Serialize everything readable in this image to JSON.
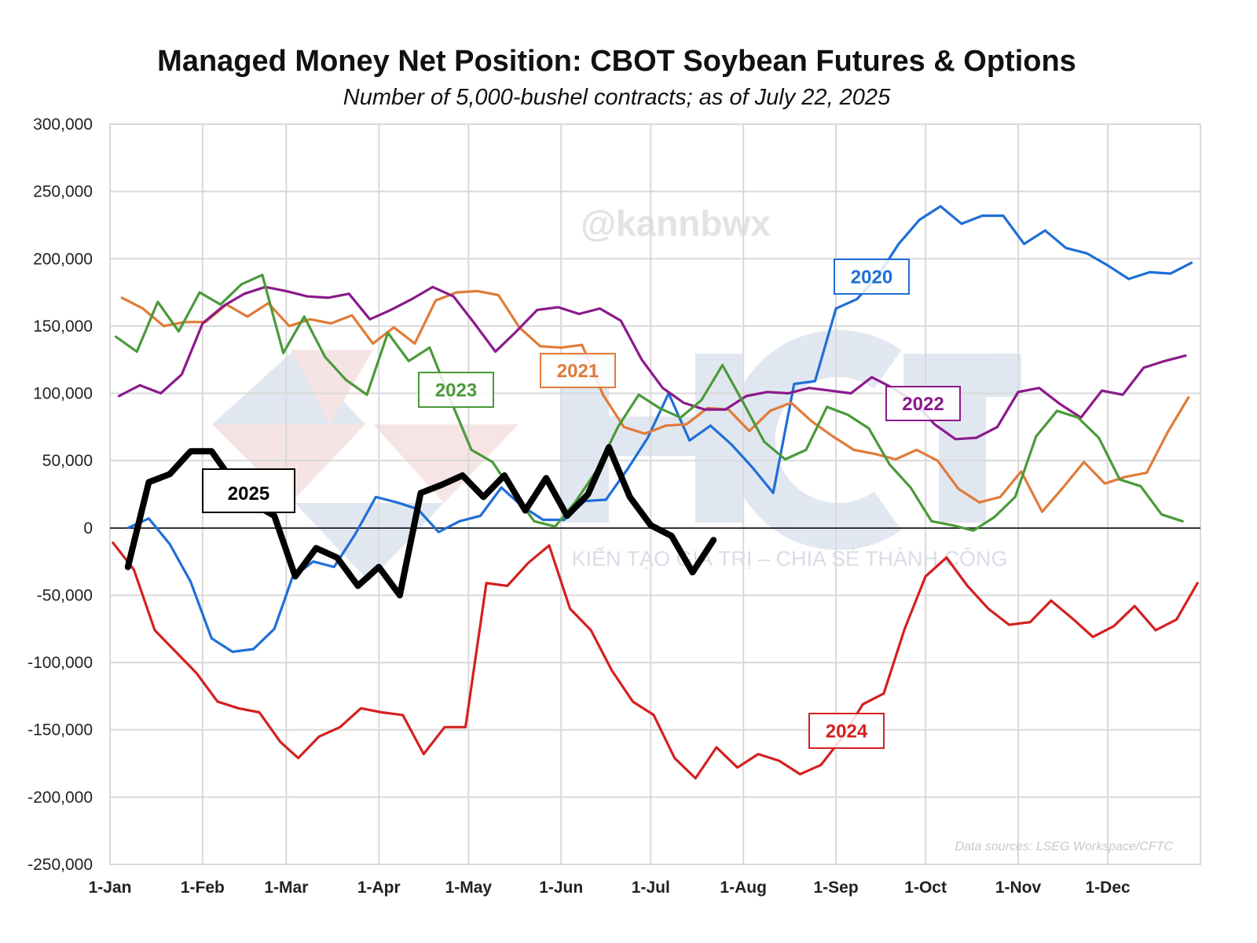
{
  "chart_data": {
    "type": "line",
    "title": "Managed Money Net Position: CBOT Soybean Futures & Options",
    "subtitle": "Number of 5,000-bushel contracts; as of July 22, 2025",
    "xlabel": "",
    "ylabel": "",
    "ylim": [
      -250000,
      300000
    ],
    "y_ticks": [
      "300,000",
      "250,000",
      "200,000",
      "150,000",
      "100,000",
      "50,000",
      "0",
      "-50,000",
      "-100,000",
      "-150,000",
      "-200,000",
      "-250,000"
    ],
    "x_ticks": [
      "1-Jan",
      "1-Feb",
      "1-Mar",
      "1-Apr",
      "1-May",
      "1-Jun",
      "1-Jul",
      "1-Aug",
      "1-Sep",
      "1-Oct",
      "1-Nov",
      "1-Dec"
    ],
    "grid": true,
    "legend": "inline labels",
    "source": "Data sources: LSEG Workspace/CFTC",
    "watermarks": [
      "@kannbwx",
      "HCT",
      "KIẾN TẠO GIÁ TRỊ – CHIA SẺ THÀNH CÔNG"
    ],
    "series": [
      {
        "name": "2020",
        "color": "#1f6fd6",
        "x": [
          "01-07",
          "01-14",
          "01-21",
          "01-28",
          "02-04",
          "02-11",
          "02-18",
          "02-25",
          "03-03",
          "03-10",
          "03-17",
          "03-24",
          "03-31",
          "04-07",
          "04-14",
          "04-21",
          "04-28",
          "05-05",
          "05-12",
          "05-19",
          "05-26",
          "06-02",
          "06-09",
          "06-16",
          "06-23",
          "06-30",
          "07-07",
          "07-14",
          "07-21",
          "07-28",
          "08-04",
          "08-11",
          "08-18",
          "08-25",
          "09-01",
          "09-08",
          "09-15",
          "09-22",
          "09-29",
          "10-06",
          "10-13",
          "10-20",
          "10-27",
          "11-03",
          "11-10",
          "11-17",
          "11-24",
          "12-01",
          "12-08",
          "12-15",
          "12-22",
          "12-29"
        ],
        "y": [
          0,
          7000,
          -12000,
          -40000,
          -82000,
          -92000,
          -90000,
          -75000,
          -37000,
          -25000,
          -29000,
          -5000,
          23000,
          19000,
          14000,
          -3000,
          5000,
          9000,
          30000,
          16000,
          6000,
          6000,
          20000,
          21000,
          43000,
          67000,
          100000,
          65000,
          76000,
          62000,
          45000,
          26000,
          107000,
          109000,
          163000,
          170000,
          187000,
          211000,
          229000,
          239000,
          226000,
          232000,
          232000,
          211000,
          221000,
          208000,
          204000,
          195000,
          185000,
          190000,
          189000,
          197000
        ]
      },
      {
        "name": "2021",
        "color": "#e07b39",
        "x": [
          "01-05",
          "01-12",
          "01-19",
          "01-26",
          "02-02",
          "02-09",
          "02-16",
          "02-23",
          "03-02",
          "03-09",
          "03-16",
          "03-23",
          "03-30",
          "04-06",
          "04-13",
          "04-20",
          "04-27",
          "05-04",
          "05-11",
          "05-18",
          "05-25",
          "06-01",
          "06-08",
          "06-15",
          "06-22",
          "06-29",
          "07-06",
          "07-13",
          "07-20",
          "07-27",
          "08-03",
          "08-10",
          "08-17",
          "08-24",
          "08-31",
          "09-07",
          "09-14",
          "09-21",
          "09-28",
          "10-05",
          "10-12",
          "10-19",
          "10-26",
          "11-02",
          "11-09",
          "11-16",
          "11-23",
          "11-30",
          "12-07",
          "12-14",
          "12-21",
          "12-28"
        ],
        "y": [
          171000,
          163000,
          150000,
          153000,
          153000,
          166000,
          157000,
          167000,
          150000,
          155000,
          152000,
          158000,
          137000,
          149000,
          137000,
          169000,
          175000,
          176000,
          173000,
          149000,
          135000,
          134000,
          136000,
          99000,
          75000,
          70000,
          76000,
          77000,
          89000,
          88000,
          72000,
          87000,
          93000,
          79000,
          68000,
          58000,
          55000,
          51000,
          58000,
          50000,
          29000,
          19000,
          23000,
          42000,
          12000,
          30000,
          49000,
          33000,
          38000,
          41000,
          71000,
          97000
        ]
      },
      {
        "name": "2022",
        "color": "#8b1a8b",
        "x": [
          "01-04",
          "01-11",
          "01-18",
          "01-25",
          "02-01",
          "02-08",
          "02-15",
          "02-22",
          "03-01",
          "03-08",
          "03-15",
          "03-22",
          "03-29",
          "04-05",
          "04-12",
          "04-19",
          "04-26",
          "05-03",
          "05-10",
          "05-17",
          "05-24",
          "05-31",
          "06-07",
          "06-14",
          "06-21",
          "06-28",
          "07-05",
          "07-12",
          "07-19",
          "07-26",
          "08-02",
          "08-09",
          "08-16",
          "08-23",
          "08-30",
          "09-06",
          "09-13",
          "09-20",
          "09-27",
          "10-04",
          "10-11",
          "10-18",
          "10-25",
          "11-01",
          "11-08",
          "11-15",
          "11-22",
          "11-29",
          "12-06",
          "12-13",
          "12-20",
          "12-27"
        ],
        "y": [
          98000,
          106000,
          100000,
          114000,
          152000,
          165000,
          174000,
          179000,
          176000,
          172000,
          171000,
          174000,
          155000,
          162000,
          170000,
          179000,
          172000,
          152000,
          131000,
          146000,
          162000,
          164000,
          159000,
          163000,
          154000,
          125000,
          104000,
          93000,
          88000,
          88000,
          98000,
          101000,
          100000,
          104000,
          102000,
          100000,
          112000,
          104000,
          94000,
          77000,
          66000,
          67000,
          75000,
          101000,
          104000,
          92000,
          82000,
          102000,
          99000,
          119000,
          124000,
          128000
        ]
      },
      {
        "name": "2023",
        "color": "#4a9a3a",
        "x": [
          "01-03",
          "01-10",
          "01-17",
          "01-24",
          "01-31",
          "02-07",
          "02-14",
          "02-21",
          "02-28",
          "03-07",
          "03-14",
          "03-21",
          "03-28",
          "04-04",
          "04-11",
          "04-18",
          "04-25",
          "05-02",
          "05-09",
          "05-16",
          "05-23",
          "05-30",
          "06-06",
          "06-13",
          "06-20",
          "06-27",
          "07-04",
          "07-11",
          "07-18",
          "07-25",
          "08-01",
          "08-08",
          "08-15",
          "08-22",
          "08-29",
          "09-05",
          "09-12",
          "09-19",
          "09-26",
          "10-03",
          "10-10",
          "10-17",
          "10-24",
          "10-31",
          "11-07",
          "11-14",
          "11-21",
          "11-28",
          "12-05",
          "12-12",
          "12-19",
          "12-26"
        ],
        "y": [
          142000,
          131000,
          168000,
          146000,
          175000,
          166000,
          181000,
          188000,
          130000,
          157000,
          127000,
          110000,
          99000,
          145000,
          124000,
          134000,
          95000,
          58000,
          49000,
          26000,
          5000,
          1000,
          20000,
          43000,
          75000,
          99000,
          89000,
          82000,
          95000,
          121000,
          93000,
          64000,
          51000,
          58000,
          90000,
          84000,
          74000,
          47000,
          30000,
          5000,
          2000,
          -2000,
          8000,
          23000,
          68000,
          87000,
          82000,
          67000,
          36000,
          31000,
          10000,
          5000
        ]
      },
      {
        "name": "2024",
        "color": "#d42020",
        "x": [
          "01-02",
          "01-09",
          "01-16",
          "01-23",
          "01-30",
          "02-06",
          "02-13",
          "02-20",
          "02-27",
          "03-05",
          "03-12",
          "03-19",
          "03-26",
          "04-02",
          "04-09",
          "04-16",
          "04-23",
          "04-30",
          "05-07",
          "05-14",
          "05-21",
          "05-28",
          "06-04",
          "06-11",
          "06-18",
          "06-25",
          "07-02",
          "07-09",
          "07-16",
          "07-23",
          "07-30",
          "08-06",
          "08-13",
          "08-20",
          "08-27",
          "09-03",
          "09-10",
          "09-17",
          "09-24",
          "10-01",
          "10-08",
          "10-15",
          "10-22",
          "10-29",
          "11-05",
          "11-12",
          "11-19",
          "11-26",
          "12-03",
          "12-10",
          "12-17",
          "12-24",
          "12-31"
        ],
        "y": [
          -11000,
          -31000,
          -76000,
          -92000,
          -108000,
          -129000,
          -134000,
          -137000,
          -159000,
          -171000,
          -155000,
          -148000,
          -134000,
          -137000,
          -139000,
          -168000,
          -148000,
          -148000,
          -41000,
          -43000,
          -26000,
          -13000,
          -60000,
          -76000,
          -106000,
          -129000,
          -139000,
          -171000,
          -186000,
          -163000,
          -178000,
          -168000,
          -173000,
          -183000,
          -176000,
          -156000,
          -131000,
          -123000,
          -75000,
          -36000,
          -22000,
          -43000,
          -60000,
          -72000,
          -70000,
          -54000,
          -67000,
          -81000,
          -73000,
          -58000,
          -76000,
          -68000,
          -41000
        ]
      },
      {
        "name": "2025",
        "color": "#000000",
        "x": [
          "01-07",
          "01-14",
          "01-21",
          "01-28",
          "02-04",
          "02-11",
          "02-18",
          "02-25",
          "03-04",
          "03-11",
          "03-18",
          "03-25",
          "04-01",
          "04-08",
          "04-15",
          "04-22",
          "04-29",
          "05-06",
          "05-13",
          "05-20",
          "05-27",
          "06-03",
          "06-10",
          "06-17",
          "06-24",
          "07-01",
          "07-08",
          "07-15",
          "07-22"
        ],
        "y": [
          -29000,
          34000,
          40000,
          57000,
          57000,
          35000,
          18000,
          9000,
          -36000,
          -15000,
          -22000,
          -43000,
          -29000,
          -50000,
          26000,
          32000,
          39000,
          23000,
          39000,
          13000,
          37000,
          9000,
          25000,
          60000,
          23000,
          2000,
          -6000,
          -33000,
          -9000
        ]
      }
    ]
  }
}
